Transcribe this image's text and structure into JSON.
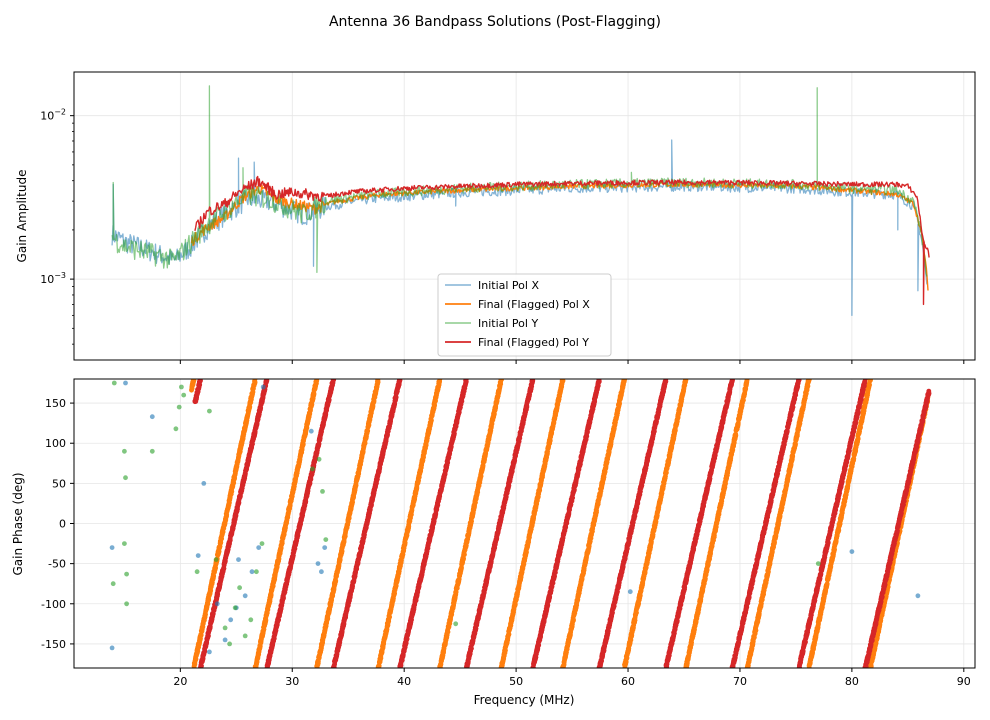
{
  "figure_title": "Antenna 36 Bandpass Solutions (Post-Flagging)",
  "colors": {
    "initial_x": "#1f77b4",
    "final_x": "#ff7f0e",
    "initial_y": "#2ca02c",
    "final_y": "#d62728",
    "grid": "#e6e6e6"
  },
  "chart_data": [
    {
      "type": "line",
      "panel": "amplitude",
      "ylabel": "Gain Amplitude",
      "xlabel": "",
      "yscale": "log",
      "xlim": [
        10.5,
        91
      ],
      "ylim": [
        0.00032,
        0.0185
      ],
      "x_ticks": [
        20,
        30,
        40,
        50,
        60,
        70,
        80,
        90
      ],
      "y_ticks": [
        {
          "value": 0.001,
          "base": "10",
          "exp": "−3"
        },
        {
          "value": 0.01,
          "base": "10",
          "exp": "−2"
        }
      ],
      "legend_position": "lower-center",
      "legend": [
        "Initial Pol X",
        "Final (Flagged) Pol X",
        "Initial Pol Y",
        "Final (Flagged) Pol Y"
      ],
      "series": [
        {
          "name": "Initial Pol X",
          "freq_range": [
            13.9,
            86.7
          ],
          "profile_x": [
            13.9,
            15.0,
            19.5,
            21.0,
            22.5,
            24.0,
            26.0,
            28.0,
            31.0,
            33.0,
            37.0,
            45.0,
            55.0,
            65.0,
            75.0,
            80.0,
            84.0,
            85.5,
            86.2,
            86.7
          ],
          "profile_y": [
            0.0019,
            0.0017,
            0.0013,
            0.0016,
            0.0021,
            0.0025,
            0.0031,
            0.003,
            0.0025,
            0.0028,
            0.0031,
            0.0034,
            0.0036,
            0.0037,
            0.0036,
            0.0034,
            0.0033,
            0.0028,
            0.0018,
            0.0009
          ],
          "spikes": [
            [
              14.0,
              0.0038
            ],
            [
              25.2,
              0.0055
            ],
            [
              26.6,
              0.0052
            ],
            [
              31.9,
              0.0012
            ],
            [
              44.6,
              0.0028
            ],
            [
              63.9,
              0.0071
            ],
            [
              80.0,
              0.0006
            ],
            [
              84.1,
              0.002
            ],
            [
              85.9,
              0.00085
            ]
          ]
        },
        {
          "name": "Final (Flagged) Pol X",
          "freq_range": [
            21.0,
            86.8
          ],
          "profile_x": [
            21.0,
            22.5,
            24.0,
            25.5,
            27.0,
            28.5,
            30.0,
            32.0,
            34.0,
            38.0,
            45.0,
            55.0,
            65.0,
            75.0,
            80.0,
            82.0,
            84.0,
            85.5,
            86.2,
            86.8
          ],
          "profile_y": [
            0.0017,
            0.0021,
            0.0024,
            0.0031,
            0.0036,
            0.0031,
            0.0029,
            0.0027,
            0.003,
            0.0033,
            0.0035,
            0.0037,
            0.0038,
            0.0037,
            0.0035,
            0.0034,
            0.0033,
            0.0029,
            0.0019,
            0.00088
          ],
          "spikes": []
        },
        {
          "name": "Initial Pol Y",
          "freq_range": [
            13.9,
            86.7
          ],
          "profile_x": [
            13.9,
            15.0,
            19.5,
            21.0,
            22.5,
            24.0,
            26.0,
            28.0,
            31.0,
            33.0,
            37.0,
            45.0,
            55.0,
            65.0,
            75.0,
            80.0,
            84.0,
            85.5,
            86.2,
            86.7
          ],
          "profile_y": [
            0.0018,
            0.0016,
            0.0013,
            0.0017,
            0.0022,
            0.0026,
            0.0033,
            0.0031,
            0.0025,
            0.003,
            0.0033,
            0.0036,
            0.0038,
            0.0039,
            0.0038,
            0.0036,
            0.0035,
            0.003,
            0.0019,
            0.001
          ],
          "spikes": [
            [
              14.0,
              0.0039
            ],
            [
              22.6,
              0.0152
            ],
            [
              25.6,
              0.0048
            ],
            [
              32.2,
              0.0011
            ],
            [
              60.3,
              0.0045
            ],
            [
              76.9,
              0.0148
            ]
          ]
        },
        {
          "name": "Final (Flagged) Pol Y",
          "freq_range": [
            21.3,
            86.9
          ],
          "profile_x": [
            21.3,
            22.5,
            24.0,
            25.5,
            27.0,
            28.5,
            30.0,
            31.5,
            33.0,
            35.0,
            40.0,
            50.0,
            60.0,
            70.0,
            80.0,
            84.0,
            85.0,
            85.8,
            86.3,
            86.9
          ],
          "profile_y": [
            0.002,
            0.0026,
            0.0029,
            0.0035,
            0.004,
            0.0033,
            0.0034,
            0.0033,
            0.0032,
            0.0034,
            0.0036,
            0.0038,
            0.0039,
            0.0039,
            0.0038,
            0.0038,
            0.0037,
            0.0032,
            0.0018,
            0.0014
          ],
          "spikes": [
            [
              86.4,
              0.0007
            ]
          ]
        }
      ]
    },
    {
      "type": "scatter",
      "panel": "phase",
      "ylabel": "Gain Phase (deg)",
      "xlabel": "Frequency (MHz)",
      "xlim": [
        10.5,
        91
      ],
      "ylim": [
        -180,
        180
      ],
      "x_ticks": [
        20,
        30,
        40,
        50,
        60,
        70,
        80,
        90
      ],
      "y_ticks": [
        -150,
        -100,
        -50,
        0,
        50,
        100,
        150
      ],
      "series": [
        {
          "name": "Final (Flagged) Pol X",
          "freq_range": [
            21.0,
            86.8
          ],
          "phase_slope_deg_per_mhz": 65.5,
          "phase_at_anchor": -180,
          "anchor_freq": 21.2,
          "wrap_fraction_visible": true
        },
        {
          "name": "Final (Flagged) Pol Y",
          "freq_range": [
            21.3,
            86.9
          ],
          "phase_slope_deg_per_mhz": 60.6,
          "phase_at_anchor": -180,
          "anchor_freq": 21.8
        },
        {
          "name": "Initial Pol X",
          "scatter_points": [
            [
              13.9,
              -30
            ],
            [
              13.9,
              -155
            ],
            [
              15.1,
              175
            ],
            [
              17.5,
              133
            ],
            [
              21.6,
              -40
            ],
            [
              22.1,
              50
            ],
            [
              22.6,
              -160
            ],
            [
              23.3,
              -100
            ],
            [
              24.0,
              -145
            ],
            [
              24.5,
              -120
            ],
            [
              25.0,
              -105
            ],
            [
              25.2,
              -45
            ],
            [
              25.8,
              -90
            ],
            [
              26.4,
              -60
            ],
            [
              27.0,
              -30
            ],
            [
              27.4,
              170
            ],
            [
              31.7,
              115
            ],
            [
              32.3,
              -50
            ],
            [
              32.6,
              -60
            ],
            [
              32.9,
              -30
            ],
            [
              60.2,
              -85
            ],
            [
              80.0,
              -35
            ],
            [
              85.9,
              -90
            ]
          ]
        },
        {
          "name": "Initial Pol Y",
          "scatter_points": [
            [
              14.0,
              -75
            ],
            [
              14.1,
              175
            ],
            [
              15.0,
              -25
            ],
            [
              15.0,
              90
            ],
            [
              15.1,
              57
            ],
            [
              15.2,
              -63
            ],
            [
              15.2,
              -100
            ],
            [
              17.5,
              90
            ],
            [
              19.6,
              118
            ],
            [
              19.9,
              145
            ],
            [
              20.1,
              170
            ],
            [
              20.3,
              160
            ],
            [
              21.5,
              -60
            ],
            [
              22.6,
              140
            ],
            [
              23.2,
              -45
            ],
            [
              24.0,
              -130
            ],
            [
              24.4,
              -150
            ],
            [
              24.9,
              -105
            ],
            [
              25.3,
              -80
            ],
            [
              25.8,
              -140
            ],
            [
              26.3,
              -120
            ],
            [
              26.8,
              -60
            ],
            [
              27.3,
              -25
            ],
            [
              31.8,
              68
            ],
            [
              32.4,
              80
            ],
            [
              32.7,
              40
            ],
            [
              33.0,
              -20
            ],
            [
              44.6,
              -125
            ],
            [
              77.0,
              -50
            ]
          ]
        }
      ]
    }
  ]
}
